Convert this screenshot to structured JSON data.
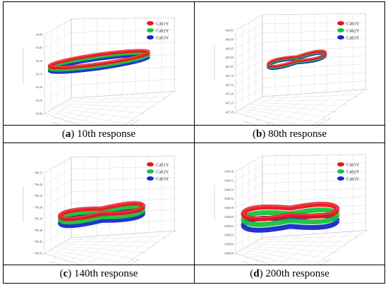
{
  "chart_data": [
    {
      "type": "3d-line",
      "panel": "a",
      "caption_letter": "a",
      "caption_text": "10th response",
      "legend": [
        "Cab1Y",
        "Cab2Y",
        "Cab3Y"
      ],
      "legend_position": "top-right",
      "z_ticks": [
        "-34.00",
        "-34.05",
        "-34.10",
        "-34.15",
        "-34.20",
        "-34.25",
        "-34.30"
      ],
      "grid": true
    },
    {
      "type": "3d-line",
      "panel": "b",
      "caption_letter": "b",
      "caption_text": "80th response",
      "legend": [
        "Cab1Y",
        "Cab2Y",
        "Cab3Y"
      ],
      "legend_position": "top-right",
      "z_ticks": [
        "-466.85",
        "-466.90",
        "-466.95",
        "-467.00",
        "-467.05",
        "-467.10",
        "-467.15",
        "-467.20",
        "-467.25",
        "-467.30"
      ],
      "grid": true
    },
    {
      "type": "3d-line",
      "panel": "c",
      "caption_letter": "c",
      "caption_text": "140th response",
      "legend": [
        "Cab1Y",
        "Cab2Y",
        "Cab3Y"
      ],
      "legend_position": "top-right",
      "z_ticks": [
        "-796.15",
        "-796.20",
        "-796.25",
        "-796.30",
        "-796.35",
        "-796.40",
        "-796.45",
        "-796.50"
      ],
      "grid": true
    },
    {
      "type": "3d-line",
      "panel": "d",
      "caption_letter": "d",
      "caption_text": "200th response",
      "legend": [
        "Cab1Y",
        "Cab2Y",
        "Cab3Y"
      ],
      "legend_position": "top-right",
      "z_ticks": [
        "-1048.50",
        "-1048.52",
        "-1048.54",
        "-1048.56",
        "-1048.58",
        "-1048.60",
        "-1048.62",
        "-1048.64",
        "-1048.66",
        "-1048.68"
      ],
      "grid": true
    }
  ],
  "colors": {
    "cab1": "#e8141b",
    "cab2": "#18c23a",
    "cab3": "#1628c8"
  }
}
